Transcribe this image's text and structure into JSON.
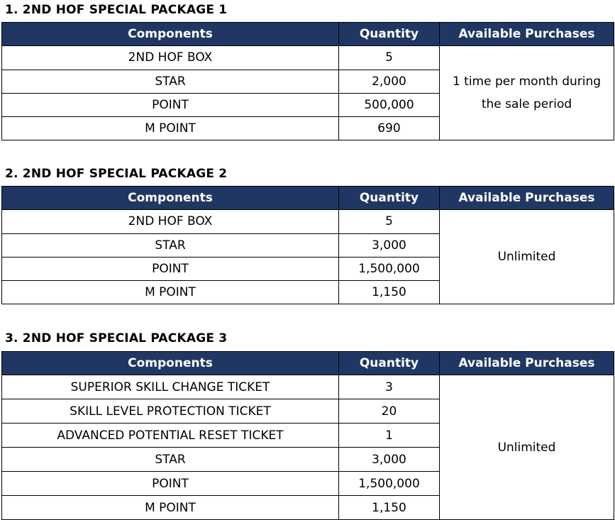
{
  "headers": {
    "components": "Components",
    "quantity": "Quantity",
    "available": "Available Purchases"
  },
  "packages": [
    {
      "title": "1. 2ND HOF SPECIAL PACKAGE 1",
      "available": "1 time per month during the sale period",
      "rows": [
        [
          "2ND HOF BOX",
          "5"
        ],
        [
          "STAR",
          "2,000"
        ],
        [
          "POINT",
          "500,000"
        ],
        [
          "M POINT",
          "690"
        ]
      ]
    },
    {
      "title": "2. 2ND HOF SPECIAL PACKAGE 2",
      "available": "Unlimited",
      "rows": [
        [
          "2ND HOF BOX",
          "5"
        ],
        [
          "STAR",
          "3,000"
        ],
        [
          "POINT",
          "1,500,000"
        ],
        [
          "M POINT",
          "1,150"
        ]
      ]
    },
    {
      "title": "3. 2ND HOF SPECIAL PACKAGE 3",
      "available": "Unlimited",
      "rows": [
        [
          "SUPERIOR SKILL CHANGE TICKET",
          "3"
        ],
        [
          "SKILL LEVEL PROTECTION TICKET",
          "20"
        ],
        [
          "ADVANCED POTENTIAL RESET TICKET",
          "1"
        ],
        [
          "STAR",
          "3,000"
        ],
        [
          "POINT",
          "1,500,000"
        ],
        [
          "M POINT",
          "1,150"
        ]
      ]
    }
  ],
  "colors": {
    "header_bg": "#213763",
    "header_text": "#ffffff"
  }
}
